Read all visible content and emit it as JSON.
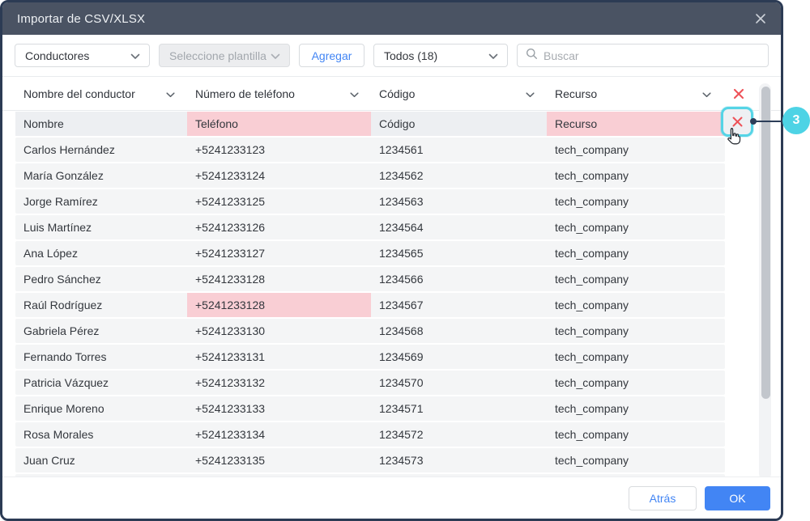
{
  "window": {
    "title": "Importar de CSV/XLSX"
  },
  "toolbar": {
    "entity_dropdown": "Conductores",
    "template_dropdown": "Seleccione plantilla",
    "add_button": "Agregar",
    "filter_dropdown": "Todos (18)",
    "search_placeholder": "Buscar"
  },
  "table": {
    "headers": [
      "Nombre del conductor",
      "Número de teléfono",
      "Código",
      "Recurso"
    ],
    "mapping_row": {
      "cells": [
        {
          "text": "Nombre",
          "error": false
        },
        {
          "text": "Teléfono",
          "error": true
        },
        {
          "text": "Código",
          "error": false
        },
        {
          "text": "Recurso",
          "error": true
        }
      ]
    },
    "rows": [
      {
        "name": "Carlos Hernández",
        "phone": "+5241233123",
        "code": "1234561",
        "resource": "tech_company"
      },
      {
        "name": "María González",
        "phone": "+5241233124",
        "code": "1234562",
        "resource": "tech_company"
      },
      {
        "name": "Jorge Ramírez",
        "phone": "+5241233125",
        "code": "1234563",
        "resource": "tech_company"
      },
      {
        "name": "Luis Martínez",
        "phone": "+5241233126",
        "code": "1234564",
        "resource": "tech_company"
      },
      {
        "name": "Ana López",
        "phone": "+5241233127",
        "code": "1234565",
        "resource": "tech_company"
      },
      {
        "name": "Pedro Sánchez",
        "phone": "+5241233128",
        "code": "1234566",
        "resource": "tech_company"
      },
      {
        "name": "Raúl Rodríguez",
        "phone": "+5241233128",
        "code": "1234567",
        "resource": "tech_company",
        "phone_error": true
      },
      {
        "name": "Gabriela Pérez",
        "phone": "+5241233130",
        "code": "1234568",
        "resource": "tech_company"
      },
      {
        "name": "Fernando Torres",
        "phone": "+5241233131",
        "code": "1234569",
        "resource": "tech_company"
      },
      {
        "name": "Patricia Vázquez",
        "phone": "+5241233132",
        "code": "1234570",
        "resource": "tech_company"
      },
      {
        "name": "Enrique Moreno",
        "phone": "+5241233133",
        "code": "1234571",
        "resource": "tech_company"
      },
      {
        "name": "Rosa Morales",
        "phone": "+5241233134",
        "code": "1234572",
        "resource": "tech_company"
      },
      {
        "name": "Juan Cruz",
        "phone": "+5241233135",
        "code": "1234573",
        "resource": "tech_company"
      }
    ]
  },
  "callout": {
    "number": "3"
  },
  "footer": {
    "back_button": "Atrás",
    "ok_button": "OK"
  },
  "icons": {
    "close_icon": "✕",
    "chevron_down_icon": "⌄",
    "search_icon": "magnifier",
    "remove_icon": "✕",
    "cursor_icon": "hand-pointer"
  },
  "colors": {
    "titlebar": "#4a5363",
    "dialog_border": "#2c3b54",
    "accent_blue": "#4285f4",
    "error_pink": "#f9ced4",
    "error_red": "#ee5258",
    "callout_cyan": "#4ed3e5",
    "row_gray": "#f4f5f6"
  }
}
